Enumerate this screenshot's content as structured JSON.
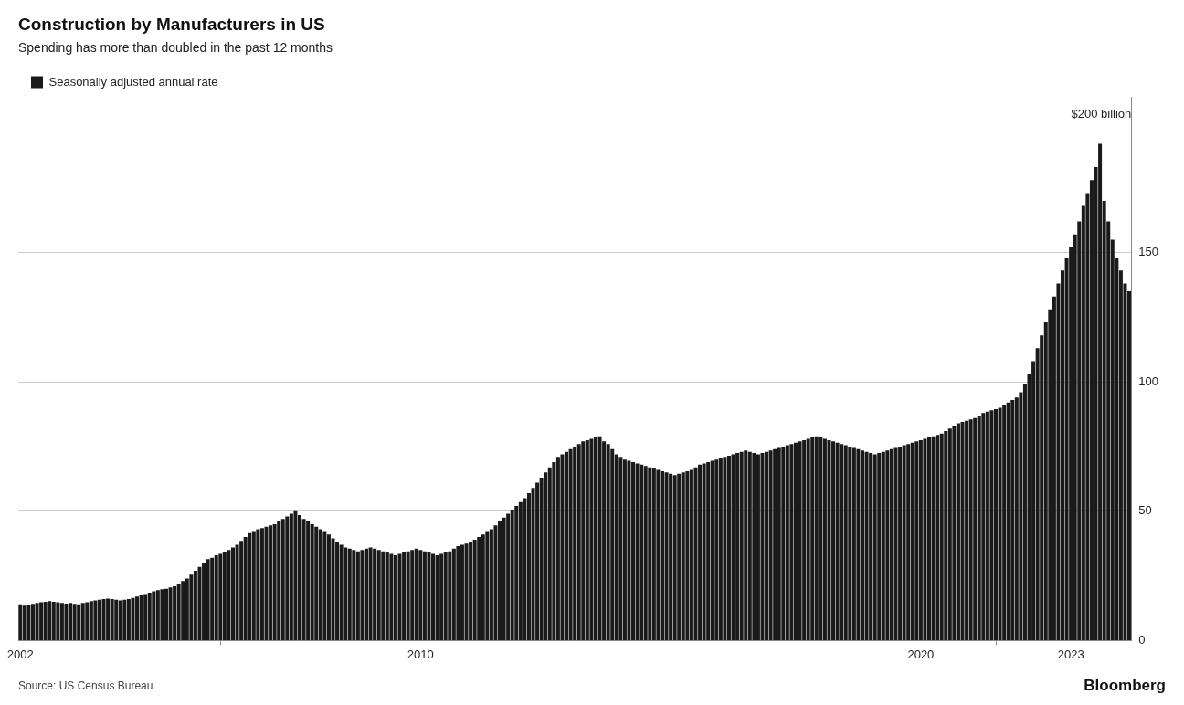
{
  "chart_data": {
    "type": "bar",
    "title": "Construction by Manufacturers in US",
    "subtitle": "Spending has more than doubled in the past 12 months",
    "source": "Source: US Census Bureau",
    "branding": "Bloomberg",
    "annotations": [
      {
        "text": "$200 billion",
        "y": 200
      }
    ],
    "background_color": "#ffffff",
    "legend": "top",
    "grid": true,
    "ylim": [
      0,
      210
    ],
    "yticks": [
      0,
      50,
      100,
      150
    ],
    "categories": [
      "2002",
      null,
      null,
      null,
      null,
      null,
      null,
      null,
      null,
      null,
      null,
      null,
      null,
      null,
      null,
      null,
      null,
      null,
      null,
      null,
      null,
      null,
      null,
      null,
      null,
      null,
      null,
      null,
      null,
      null,
      null,
      null,
      null,
      null,
      null,
      null,
      null,
      null,
      null,
      null,
      null,
      null,
      null,
      null,
      null,
      null,
      null,
      null,
      null,
      null,
      null,
      null,
      null,
      null,
      null,
      null,
      null,
      null,
      null,
      null,
      null,
      null,
      null,
      null,
      null,
      null,
      null,
      null,
      null,
      null,
      null,
      null,
      null,
      null,
      null,
      null,
      null,
      null,
      null,
      null,
      null,
      null,
      null,
      null,
      null,
      null,
      null,
      null,
      null,
      null,
      null,
      null,
      null,
      null,
      null,
      null,
      "2010",
      null,
      null,
      null,
      null,
      null,
      null,
      null,
      null,
      null,
      null,
      null,
      null,
      null,
      null,
      null,
      null,
      null,
      null,
      null,
      null,
      null,
      null,
      null,
      null,
      null,
      null,
      null,
      null,
      null,
      null,
      null,
      null,
      null,
      null,
      null,
      null,
      null,
      null,
      null,
      null,
      null,
      null,
      null,
      null,
      null,
      null,
      null,
      null,
      null,
      null,
      null,
      null,
      null,
      null,
      null,
      null,
      null,
      null,
      null,
      null,
      null,
      null,
      null,
      null,
      null,
      null,
      null,
      null,
      null,
      null,
      null,
      null,
      null,
      null,
      null,
      null,
      null,
      null,
      null,
      null,
      null,
      null,
      null,
      null,
      null,
      null,
      null,
      null,
      null,
      null,
      null,
      null,
      null,
      null,
      null,
      null,
      null,
      null,
      null,
      null,
      null,
      null,
      null,
      null,
      null,
      null,
      null,
      null,
      null,
      null,
      null,
      null,
      null,
      null,
      null,
      null,
      null,
      null,
      null,
      "2020",
      null,
      null,
      null,
      null,
      null,
      null,
      null,
      null,
      null,
      null,
      null,
      null,
      null,
      null,
      null,
      null,
      null,
      null,
      null,
      null,
      null,
      null,
      null,
      null,
      null,
      null,
      null,
      null,
      null,
      null,
      null,
      null,
      null,
      null,
      null,
      "2023",
      null,
      null,
      null,
      null,
      null,
      null,
      null,
      null,
      null,
      null,
      null,
      null,
      null,
      null
    ],
    "series": [
      {
        "name": "Seasonally adjusted annual rate",
        "color": "#1a1a1a",
        "values": [
          14.0,
          13.5,
          13.8,
          14.2,
          14.5,
          14.8,
          15.0,
          15.2,
          15.0,
          14.8,
          14.5,
          14.3,
          14.5,
          14.2,
          14.0,
          14.5,
          14.8,
          15.2,
          15.5,
          15.8,
          16.0,
          16.2,
          16.0,
          15.8,
          15.5,
          15.8,
          16.0,
          16.5,
          17.0,
          17.5,
          18.0,
          18.5,
          19.0,
          19.5,
          19.8,
          20.0,
          20.5,
          21.0,
          22.0,
          23.0,
          24.0,
          25.5,
          27.0,
          28.5,
          30.0,
          31.5,
          32.0,
          33.0,
          33.5,
          34.0,
          35.0,
          36.0,
          37.0,
          38.5,
          40.0,
          41.5,
          42.0,
          43.0,
          43.5,
          44.0,
          44.5,
          45.0,
          46.0,
          47.0,
          48.0,
          49.0,
          50.0,
          48.5,
          47.0,
          46.0,
          45.0,
          44.0,
          43.0,
          42.0,
          41.0,
          39.5,
          38.0,
          37.0,
          36.0,
          35.5,
          35.0,
          34.5,
          35.0,
          35.5,
          36.0,
          35.5,
          35.0,
          34.5,
          34.0,
          33.5,
          33.0,
          33.5,
          34.0,
          34.5,
          35.0,
          35.5,
          35.0,
          34.5,
          34.0,
          33.5,
          33.0,
          33.5,
          34.0,
          34.5,
          35.5,
          36.5,
          37.0,
          37.5,
          38.0,
          39.0,
          40.0,
          41.0,
          42.0,
          43.0,
          44.5,
          46.0,
          47.5,
          49.0,
          50.5,
          52.0,
          53.5,
          55.0,
          57.0,
          59.0,
          61.0,
          63.0,
          65.0,
          67.0,
          69.0,
          71.0,
          72.0,
          73.0,
          74.0,
          75.0,
          76.0,
          77.0,
          77.5,
          78.0,
          78.5,
          79.0,
          77.0,
          76.0,
          74.0,
          72.0,
          71.0,
          70.0,
          69.5,
          69.0,
          68.5,
          68.0,
          67.5,
          67.0,
          66.5,
          66.0,
          65.5,
          65.0,
          64.5,
          64.0,
          64.5,
          65.0,
          65.5,
          66.0,
          67.0,
          68.0,
          68.5,
          69.0,
          69.5,
          70.0,
          70.5,
          71.0,
          71.5,
          72.0,
          72.5,
          73.0,
          73.5,
          73.0,
          72.5,
          72.0,
          72.5,
          73.0,
          73.5,
          74.0,
          74.5,
          75.0,
          75.5,
          76.0,
          76.5,
          77.0,
          77.5,
          78.0,
          78.5,
          79.0,
          78.5,
          78.0,
          77.5,
          77.0,
          76.5,
          76.0,
          75.5,
          75.0,
          74.5,
          74.0,
          73.5,
          73.0,
          72.5,
          72.0,
          72.5,
          73.0,
          73.5,
          74.0,
          74.5,
          75.0,
          75.5,
          76.0,
          76.5,
          77.0,
          77.5,
          78.0,
          78.5,
          79.0,
          79.5,
          80.0,
          81.0,
          82.0,
          83.0,
          84.0,
          84.5,
          85.0,
          85.5,
          86.0,
          87.0,
          88.0,
          88.5,
          89.0,
          89.5,
          90.0,
          91.0,
          92.0,
          93.0,
          94.0,
          96.0,
          99.0,
          103.0,
          108.0,
          113.0,
          118.0,
          123.0,
          128.0,
          133.0,
          138.0,
          143.0,
          148.0,
          152.0,
          157.0,
          162.0,
          168.0,
          173.0,
          178.0,
          183.0,
          192.0,
          170.0,
          162.0,
          155.0,
          148.0,
          143.0,
          138.0,
          135.0
        ]
      }
    ]
  }
}
